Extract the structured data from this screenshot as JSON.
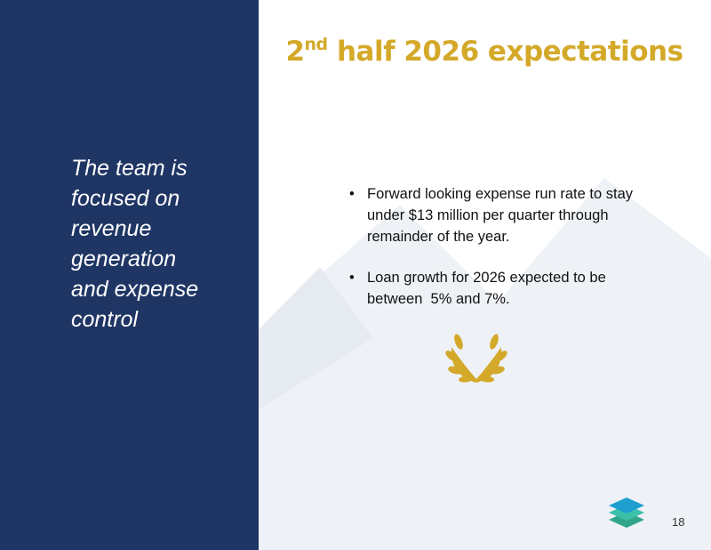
{
  "slide": {
    "title": {
      "number": "2",
      "superscript": "nd",
      "rest": " half 2026 expectations"
    },
    "quote": "The team is focused on revenue generation and expense control",
    "bullets": [
      "Forward looking expense run rate to stay under $13 million per quarter through remainder of the year.",
      "Loan growth for 2026 expected to be between  5% and 7%."
    ],
    "page_number": "18"
  }
}
